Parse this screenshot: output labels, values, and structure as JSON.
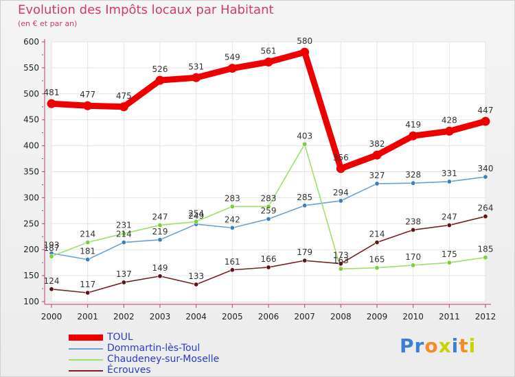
{
  "title": "Evolution des Impôts locaux par Habitant",
  "subtitle": "(en € et par an)",
  "logo": {
    "letters": [
      "P",
      "r",
      "o",
      "x",
      "i",
      "t",
      "i"
    ],
    "colors": [
      "#3a7fd5",
      "#3a7fd5",
      "#f28c28",
      "#c8d400",
      "#3a7fd5",
      "#f28c28",
      "#c8d400"
    ]
  },
  "chart_data": {
    "type": "line",
    "title": "Evolution des Impôts locaux par Habitant",
    "subtitle": "(en € et par an)",
    "xlabel": "",
    "ylabel": "",
    "categories": [
      "2000",
      "2001",
      "2002",
      "2003",
      "2004",
      "2005",
      "2006",
      "2007",
      "2008",
      "2009",
      "2010",
      "2011",
      "2012"
    ],
    "ylim": [
      100,
      600
    ],
    "yticks": [
      "100",
      "150",
      "200",
      "250",
      "300",
      "350",
      "400",
      "450",
      "500",
      "550",
      "600"
    ],
    "grid": true,
    "legend_position": "bottom-left",
    "series": [
      {
        "name": "TOUL",
        "color": "#ee0000",
        "emphasis": true,
        "values": [
          481,
          477,
          475,
          526,
          531,
          549,
          561,
          580,
          356,
          382,
          419,
          428,
          447
        ]
      },
      {
        "name": "Dommartin-lès-Toul",
        "color": "#6aa0d2",
        "marker": "#3a7fc1",
        "values": [
          193,
          181,
          214,
          219,
          249,
          242,
          259,
          285,
          294,
          327,
          328,
          331,
          340
        ]
      },
      {
        "name": "Chaudeney-sur-Moselle",
        "color": "#9de068",
        "marker": "#7ccc3c",
        "values": [
          187,
          214,
          231,
          247,
          254,
          283,
          283,
          403,
          163,
          165,
          170,
          175,
          185
        ]
      },
      {
        "name": "Écrouves",
        "color": "#7a1f1f",
        "marker": "#5e1414",
        "values": [
          124,
          117,
          137,
          149,
          133,
          161,
          166,
          179,
          173,
          214,
          238,
          247,
          264
        ]
      }
    ]
  }
}
